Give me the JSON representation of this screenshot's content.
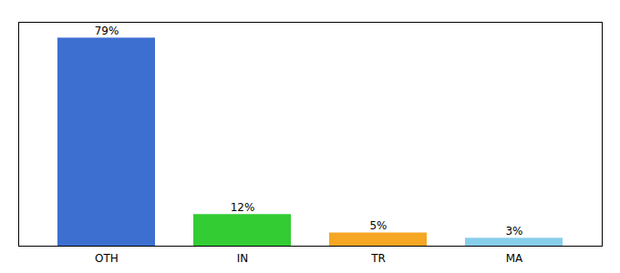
{
  "chart_data": {
    "type": "bar",
    "categories": [
      "OTH",
      "IN",
      "TR",
      "MA"
    ],
    "values": [
      79,
      12,
      5,
      3
    ],
    "value_labels": [
      "79%",
      "12%",
      "5%",
      "3%"
    ],
    "colors": [
      "#3d6fd1",
      "#33cc33",
      "#f5a623",
      "#87ceeb"
    ],
    "ylim": [
      0,
      85
    ],
    "yticks": [],
    "data_labels": true,
    "tick_labels": "x",
    "grid": false
  }
}
